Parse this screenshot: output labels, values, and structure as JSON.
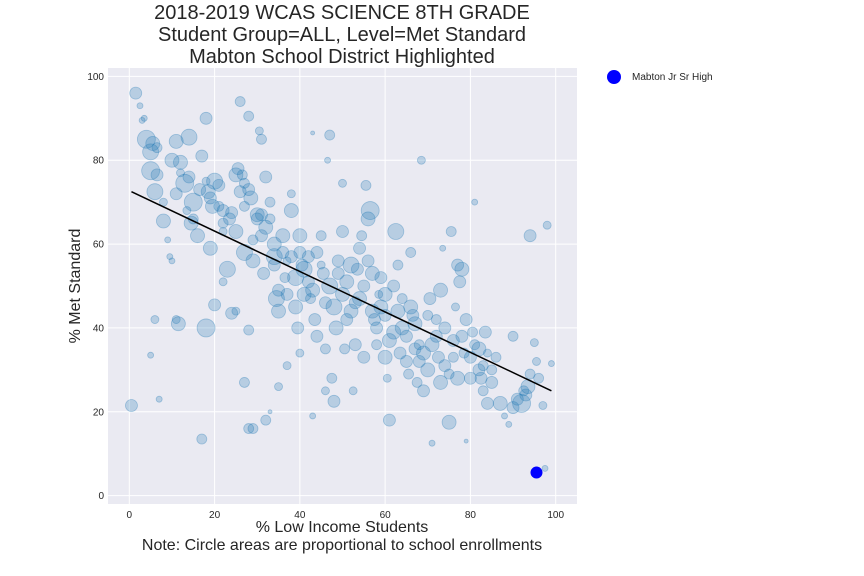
{
  "chart_data": {
    "type": "scatter",
    "title_lines": [
      "2018-2019 WCAS SCIENCE 8TH GRADE",
      "Student Group=ALL, Level=Met Standard",
      "Mabton School District Highlighted"
    ],
    "xlabel_lines": [
      "% Low Income Students",
      "Note: Circle areas are proportional to school enrollments"
    ],
    "ylabel": "% Met Standard",
    "xlim": [
      -5,
      105
    ],
    "ylim": [
      -2,
      102
    ],
    "xticks": [
      0,
      20,
      40,
      60,
      80,
      100
    ],
    "yticks": [
      0,
      20,
      40,
      60,
      80,
      100
    ],
    "grid": true,
    "legend_position": "outside-top-right",
    "colors": {
      "background": "#eaeaf2",
      "grid": "#ffffff",
      "points_fill": "#1f77b4",
      "points_opacity": 0.25,
      "highlight": "#0000ff",
      "trendline": "#000000"
    },
    "trendline": {
      "x": [
        0.5,
        99
      ],
      "y": [
        72.5,
        25
      ]
    },
    "highlight": {
      "name": "Mabton Jr Sr High",
      "x": 95.5,
      "y": 5.5,
      "size": 6
    },
    "legend": [
      {
        "label": "Mabton Jr Sr High",
        "color": "#0000ff"
      }
    ],
    "points": [
      [
        1.5,
        96,
        6
      ],
      [
        2.5,
        93,
        3
      ],
      [
        3,
        89.5,
        3
      ],
      [
        3.5,
        90,
        3
      ],
      [
        4,
        85,
        9
      ],
      [
        5,
        82,
        8
      ],
      [
        5.5,
        84,
        7
      ],
      [
        6.5,
        83,
        5
      ],
      [
        5,
        77.5,
        9
      ],
      [
        6,
        72.5,
        8
      ],
      [
        6.5,
        76.5,
        6
      ],
      [
        8,
        70,
        4
      ],
      [
        8,
        65.5,
        7
      ],
      [
        9,
        61,
        3
      ],
      [
        9.5,
        57,
        3
      ],
      [
        10,
        56,
        3
      ],
      [
        10,
        80,
        7
      ],
      [
        11,
        72,
        6
      ],
      [
        11,
        84.5,
        7
      ],
      [
        12,
        77,
        4
      ],
      [
        12,
        79.5,
        7
      ],
      [
        13,
        74.5,
        9
      ],
      [
        13.5,
        68,
        4
      ],
      [
        14,
        85.5,
        8
      ],
      [
        14,
        76,
        6
      ],
      [
        14.5,
        65,
        7
      ],
      [
        15,
        66,
        5
      ],
      [
        15,
        70,
        9
      ],
      [
        16,
        62,
        7
      ],
      [
        16.5,
        73,
        6
      ],
      [
        17,
        81,
        6
      ],
      [
        18,
        90,
        6
      ],
      [
        18,
        75,
        4
      ],
      [
        18.5,
        72.5,
        7
      ],
      [
        19,
        71,
        6
      ],
      [
        19,
        59,
        7
      ],
      [
        19.5,
        69,
        7
      ],
      [
        20,
        75,
        8
      ],
      [
        21,
        74,
        6
      ],
      [
        21,
        69,
        5
      ],
      [
        22,
        63,
        4
      ],
      [
        22,
        68,
        6
      ],
      [
        22,
        65,
        5
      ],
      [
        23,
        54,
        8
      ],
      [
        23.5,
        66,
        6
      ],
      [
        24,
        67.5,
        6
      ],
      [
        25,
        63,
        7
      ],
      [
        25,
        76.5,
        7
      ],
      [
        25.5,
        78,
        6
      ],
      [
        26,
        94,
        5
      ],
      [
        26,
        72.5,
        6
      ],
      [
        26.5,
        76.5,
        5
      ],
      [
        27,
        58,
        8
      ],
      [
        27,
        69,
        5
      ],
      [
        27,
        74.5,
        5
      ],
      [
        28,
        90.5,
        5
      ],
      [
        28,
        73,
        6
      ],
      [
        28.5,
        71,
        7
      ],
      [
        29,
        61,
        5
      ],
      [
        29,
        56,
        7
      ],
      [
        30,
        67,
        7
      ],
      [
        30,
        66,
        6
      ],
      [
        30.5,
        87,
        4
      ],
      [
        31,
        85,
        5
      ],
      [
        31,
        67,
        6
      ],
      [
        31,
        62,
        6
      ],
      [
        31.5,
        53,
        6
      ],
      [
        32,
        64,
        7
      ],
      [
        32,
        76,
        6
      ],
      [
        33,
        66,
        5
      ],
      [
        33,
        70,
        5
      ],
      [
        34,
        60,
        7
      ],
      [
        34,
        57,
        8
      ],
      [
        34,
        55,
        6
      ],
      [
        34.5,
        47,
        8
      ],
      [
        35,
        49,
        6
      ],
      [
        35,
        44,
        7
      ],
      [
        36,
        62,
        7
      ],
      [
        36,
        58,
        6
      ],
      [
        36.5,
        52,
        5
      ],
      [
        37,
        48,
        6
      ],
      [
        37,
        56,
        4
      ],
      [
        38,
        72,
        4
      ],
      [
        38,
        68,
        7
      ],
      [
        38,
        57,
        6
      ],
      [
        39,
        52,
        8
      ],
      [
        39,
        45,
        7
      ],
      [
        39.5,
        40,
        6
      ],
      [
        40,
        62,
        7
      ],
      [
        40,
        58,
        6
      ],
      [
        40.5,
        55,
        6
      ],
      [
        41,
        48,
        7
      ],
      [
        41,
        54,
        8
      ],
      [
        42,
        57,
        6
      ],
      [
        42,
        51,
        6
      ],
      [
        42.5,
        47,
        5
      ],
      [
        43,
        86.5,
        2
      ],
      [
        43,
        49,
        7
      ],
      [
        43.5,
        42,
        6
      ],
      [
        44,
        38,
        6
      ],
      [
        44,
        58,
        6
      ],
      [
        45,
        62,
        5
      ],
      [
        45,
        55,
        4
      ],
      [
        45.5,
        53,
        6
      ],
      [
        46,
        46,
        6
      ],
      [
        46,
        35,
        5
      ],
      [
        46.5,
        80,
        3
      ],
      [
        47,
        86,
        5
      ],
      [
        47,
        50,
        8
      ],
      [
        47.5,
        28,
        5
      ],
      [
        48,
        45,
        8
      ],
      [
        48,
        22.5,
        6
      ],
      [
        48.5,
        40,
        7
      ],
      [
        49,
        53,
        6
      ],
      [
        49,
        56,
        6
      ],
      [
        50,
        63,
        6
      ],
      [
        50,
        48,
        7
      ],
      [
        50,
        74.5,
        4
      ],
      [
        50.5,
        35,
        5
      ],
      [
        51,
        42,
        6
      ],
      [
        51,
        51,
        7
      ],
      [
        52,
        44,
        7
      ],
      [
        52,
        55,
        8
      ],
      [
        52.5,
        25,
        4
      ],
      [
        53,
        36,
        6
      ],
      [
        53,
        46,
        6
      ],
      [
        53.5,
        54,
        6
      ],
      [
        54,
        47,
        7
      ],
      [
        54,
        59,
        6
      ],
      [
        54.5,
        62,
        5
      ],
      [
        55,
        50,
        6
      ],
      [
        55,
        33,
        6
      ],
      [
        55.5,
        74,
        5
      ],
      [
        56,
        66,
        7
      ],
      [
        56,
        56,
        6
      ],
      [
        56.5,
        68,
        9
      ],
      [
        57,
        53,
        7
      ],
      [
        57,
        44,
        7
      ],
      [
        57.5,
        42,
        6
      ],
      [
        58,
        40,
        6
      ],
      [
        58,
        36,
        5
      ],
      [
        58.5,
        48,
        4
      ],
      [
        59,
        52,
        6
      ],
      [
        59,
        45,
        7
      ],
      [
        60,
        43,
        6
      ],
      [
        60,
        48,
        7
      ],
      [
        60,
        33,
        7
      ],
      [
        60.5,
        28,
        4
      ],
      [
        61,
        18,
        6
      ],
      [
        61,
        37,
        7
      ],
      [
        62,
        50,
        6
      ],
      [
        62,
        39,
        7
      ],
      [
        62.5,
        63,
        8
      ],
      [
        63,
        44,
        7
      ],
      [
        63,
        55,
        5
      ],
      [
        63.5,
        34,
        6
      ],
      [
        64,
        40,
        7
      ],
      [
        64,
        47,
        5
      ],
      [
        65,
        38,
        6
      ],
      [
        65,
        32,
        6
      ],
      [
        65.5,
        29,
        5
      ],
      [
        66,
        45,
        7
      ],
      [
        66,
        58,
        5
      ],
      [
        66.5,
        43,
        6
      ],
      [
        67,
        41,
        7
      ],
      [
        67,
        35,
        6
      ],
      [
        67.5,
        27,
        5
      ],
      [
        68,
        32,
        6
      ],
      [
        68,
        36,
        5
      ],
      [
        68.5,
        80,
        4
      ],
      [
        69,
        25,
        6
      ],
      [
        69,
        34,
        7
      ],
      [
        70,
        30,
        7
      ],
      [
        70,
        43,
        5
      ],
      [
        70.5,
        47,
        6
      ],
      [
        71,
        12.5,
        3
      ],
      [
        71,
        36,
        7
      ],
      [
        72,
        38,
        6
      ],
      [
        72,
        42,
        5
      ],
      [
        72.5,
        33,
        6
      ],
      [
        73,
        27,
        7
      ],
      [
        73,
        49,
        7
      ],
      [
        73.5,
        59,
        3
      ],
      [
        74,
        40,
        6
      ],
      [
        74,
        31,
        6
      ],
      [
        75,
        17.5,
        7
      ],
      [
        75,
        29,
        5
      ],
      [
        75.5,
        63,
        5
      ],
      [
        76,
        37,
        6
      ],
      [
        76,
        33,
        5
      ],
      [
        76.5,
        45,
        4
      ],
      [
        77,
        28,
        7
      ],
      [
        77,
        55,
        6
      ],
      [
        77.5,
        51,
        6
      ],
      [
        78,
        54,
        7
      ],
      [
        78,
        38,
        6
      ],
      [
        78.5,
        34,
        5
      ],
      [
        79,
        13,
        2
      ],
      [
        79,
        42,
        6
      ],
      [
        80,
        33,
        6
      ],
      [
        80,
        28,
        6
      ],
      [
        80.5,
        39,
        5
      ],
      [
        81,
        70,
        3
      ],
      [
        81,
        36,
        5
      ],
      [
        82,
        30,
        6
      ],
      [
        82,
        35,
        7
      ],
      [
        82.5,
        28,
        6
      ],
      [
        83,
        25,
        5
      ],
      [
        83,
        31,
        5
      ],
      [
        83.5,
        39,
        6
      ],
      [
        84,
        22,
        6
      ],
      [
        84,
        34,
        4
      ],
      [
        85,
        27,
        6
      ],
      [
        85,
        30,
        5
      ],
      [
        86,
        33,
        5
      ],
      [
        87,
        22,
        7
      ],
      [
        88,
        19,
        3
      ],
      [
        89,
        17,
        3
      ],
      [
        90,
        21,
        6
      ],
      [
        90,
        38,
        5
      ],
      [
        91,
        23,
        6
      ],
      [
        92,
        22,
        9
      ],
      [
        92.5,
        25,
        5
      ],
      [
        93,
        24,
        6
      ],
      [
        93.5,
        26,
        7
      ],
      [
        94,
        62,
        6
      ],
      [
        94,
        29,
        5
      ],
      [
        95,
        36.5,
        4
      ],
      [
        95.5,
        32,
        4
      ],
      [
        96,
        28,
        5
      ],
      [
        97,
        21.5,
        4
      ],
      [
        97.5,
        6.5,
        3
      ],
      [
        98,
        64.5,
        4
      ],
      [
        99,
        31.5,
        3
      ],
      [
        0.5,
        21.5,
        6
      ],
      [
        5,
        33.5,
        3
      ],
      [
        7,
        23,
        3
      ],
      [
        6,
        42,
        4
      ],
      [
        11,
        42,
        4
      ],
      [
        11.5,
        41,
        7
      ],
      [
        17,
        13.5,
        5
      ],
      [
        18,
        40,
        9
      ],
      [
        20,
        45.5,
        6
      ],
      [
        22,
        51,
        4
      ],
      [
        24,
        43.5,
        6
      ],
      [
        25,
        44,
        4
      ],
      [
        27,
        27,
        5
      ],
      [
        28,
        39.5,
        5
      ],
      [
        28,
        16,
        5
      ],
      [
        29,
        16,
        5
      ],
      [
        32,
        18,
        5
      ],
      [
        33,
        20,
        2
      ],
      [
        35,
        26,
        4
      ],
      [
        37,
        31,
        4
      ],
      [
        40,
        34,
        4
      ],
      [
        43,
        19,
        3
      ],
      [
        46,
        25,
        4
      ]
    ]
  }
}
